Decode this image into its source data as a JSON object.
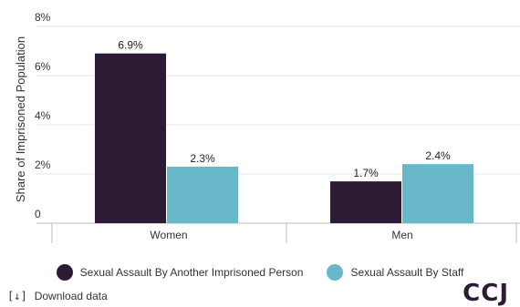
{
  "chart_data": {
    "type": "bar",
    "title": "",
    "xlabel": "",
    "ylabel": "Share of Imprisoned Population",
    "categories": [
      "Women",
      "Men"
    ],
    "ylim": [
      0,
      8
    ],
    "y_ticks": [
      "0",
      "2%",
      "4%",
      "6%",
      "8%"
    ],
    "y_tick_values": [
      0,
      2,
      4,
      6,
      8
    ],
    "grid": true,
    "legend_position": "bottom",
    "series": [
      {
        "name": "Sexual Assault By Another Imprisoned Person",
        "values": [
          6.9,
          1.7
        ],
        "labels": [
          "6.9%",
          "1.7%"
        ],
        "color": "#2d1b36"
      },
      {
        "name": "Sexual Assault By Staff",
        "values": [
          2.3,
          2.4
        ],
        "labels": [
          "2.3%",
          "2.4%"
        ],
        "color": "#69b8c9"
      }
    ]
  },
  "footer": {
    "download_label": "Download data",
    "download_icon": "download-icon",
    "logo_text": "CCJ"
  }
}
